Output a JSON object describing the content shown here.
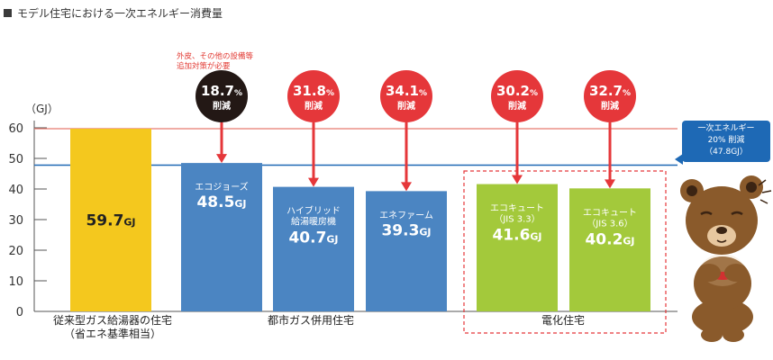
{
  "title": "モデル住宅における一次エネルギー消費量",
  "note": [
    "外皮、その他の設備等",
    "追加対策が必要"
  ],
  "unit_label": "（GJ）",
  "target": {
    "lines": [
      "一次エネルギー",
      "20% 削減",
      "（47.8GJ）"
    ],
    "value": 47.8,
    "color": "#1e69b5"
  },
  "reference_value": 59.7,
  "reference_color": "#e87a6f",
  "groups": [
    {
      "label": [
        "従来型ガス給湯器の住宅",
        "（省エネ基準相当）"
      ]
    },
    {
      "label": [
        "都市ガス併用住宅"
      ]
    },
    {
      "label": [
        "電化住宅"
      ]
    }
  ],
  "chart_data": {
    "type": "bar",
    "ylabel": "（GJ）",
    "ylim": [
      0,
      60
    ],
    "yticks": [
      0,
      10,
      20,
      30,
      40,
      50,
      60
    ],
    "bars": [
      {
        "lines": [],
        "value": 59.7,
        "value_text": "59.7",
        "unit": "GJ",
        "color": "#f4c81e",
        "text_color": "#222222",
        "reduction": null
      },
      {
        "lines": [
          "エコジョーズ"
        ],
        "value": 48.5,
        "value_text": "48.5",
        "unit": "GJ",
        "color": "#4b85c2",
        "text_color": "#ffffff",
        "reduction": {
          "value": "18.7",
          "pct": "%",
          "label": "削減",
          "color": "#231815"
        }
      },
      {
        "lines": [
          "ハイブリッド",
          "給湯暖房機"
        ],
        "value": 40.7,
        "value_text": "40.7",
        "unit": "GJ",
        "color": "#4b85c2",
        "text_color": "#ffffff",
        "reduction": {
          "value": "31.8",
          "pct": "%",
          "label": "削減",
          "color": "#e5373a"
        }
      },
      {
        "lines": [
          "エネファーム"
        ],
        "value": 39.3,
        "value_text": "39.3",
        "unit": "GJ",
        "color": "#4b85c2",
        "text_color": "#ffffff",
        "reduction": {
          "value": "34.1",
          "pct": "%",
          "label": "削減",
          "color": "#e5373a"
        }
      },
      {
        "lines": [
          "エコキュート",
          "（JIS 3.3）"
        ],
        "value": 41.6,
        "value_text": "41.6",
        "unit": "GJ",
        "color": "#a3c93b",
        "text_color": "#ffffff",
        "reduction": {
          "value": "30.2",
          "pct": "%",
          "label": "削減",
          "color": "#e5373a"
        }
      },
      {
        "lines": [
          "エコキュート",
          "（JIS 3.6）"
        ],
        "value": 40.2,
        "value_text": "40.2",
        "unit": "GJ",
        "color": "#a3c93b",
        "text_color": "#ffffff",
        "reduction": {
          "value": "32.7",
          "pct": "%",
          "label": "削減",
          "color": "#e5373a"
        }
      }
    ]
  }
}
